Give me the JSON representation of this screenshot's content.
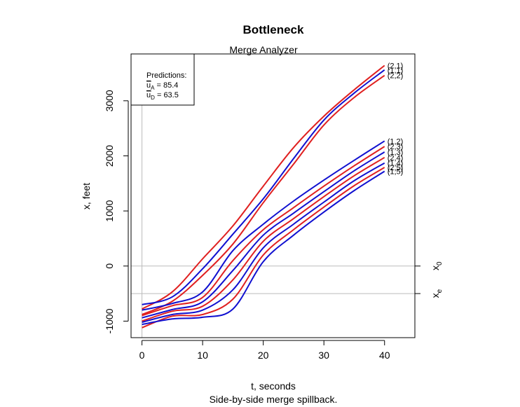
{
  "chart_data": {
    "type": "line",
    "title": "Bottleneck",
    "subtitle": "Merge Analyzer",
    "xlabel": "t, seconds",
    "ylabel": "x, feet",
    "caption": "Side-by-side merge spillback.",
    "xlim": [
      -1.8,
      45
    ],
    "ylim": [
      -1300,
      3850
    ],
    "xticks": [
      0,
      10,
      20,
      30,
      40
    ],
    "yticks": [
      -1000,
      0,
      1000,
      2000,
      3000
    ],
    "hlines": [
      {
        "y": 0,
        "label": "x",
        "sub": "0"
      },
      {
        "y": -500,
        "label": "x",
        "sub": "e"
      }
    ],
    "vline": 0,
    "legend": {
      "header": "Predictions:",
      "lines": [
        {
          "sym": "u",
          "sub": "A",
          "text": " = 85.4"
        },
        {
          "sym": "u",
          "sub": "D",
          "text": " = 63.5"
        }
      ]
    },
    "colors": {
      "red": "#e02020",
      "blue": "#1010d0",
      "ref": "#bbbbbb"
    },
    "series": [
      {
        "name": "(2,1)",
        "color": "red",
        "x": [
          0,
          5,
          10,
          15,
          20,
          25,
          30,
          35,
          40
        ],
        "y": [
          -780,
          -470,
          130,
          730,
          1450,
          2150,
          2720,
          3200,
          3640
        ]
      },
      {
        "name": "(1,1)",
        "color": "blue",
        "x": [
          0,
          5,
          10,
          15,
          20,
          25,
          30,
          35,
          40
        ],
        "y": [
          -700,
          -560,
          -50,
          580,
          1220,
          1950,
          2650,
          3140,
          3560
        ]
      },
      {
        "name": "(2,2)",
        "color": "red",
        "x": [
          0,
          5,
          10,
          15,
          20,
          25,
          30,
          35,
          40
        ],
        "y": [
          -880,
          -640,
          -170,
          400,
          1150,
          1850,
          2560,
          3060,
          3460
        ]
      },
      {
        "name": "(1,2)",
        "color": "blue",
        "x": [
          0,
          5,
          10,
          15,
          20,
          25,
          30,
          35,
          40
        ],
        "y": [
          -800,
          -680,
          -470,
          280,
          760,
          1180,
          1560,
          1920,
          2270
        ]
      },
      {
        "name": "(2,3)",
        "color": "red",
        "x": [
          0,
          5,
          10,
          15,
          20,
          25,
          30,
          35,
          40
        ],
        "y": [
          -900,
          -720,
          -570,
          100,
          660,
          1060,
          1450,
          1820,
          2170
        ]
      },
      {
        "name": "(1,3)",
        "color": "blue",
        "x": [
          0,
          5,
          10,
          15,
          20,
          25,
          30,
          35,
          40
        ],
        "y": [
          -940,
          -790,
          -650,
          -80,
          560,
          960,
          1350,
          1730,
          2070
        ]
      },
      {
        "name": "(2,4)",
        "color": "red",
        "x": [
          0,
          5,
          10,
          15,
          20,
          25,
          30,
          35,
          40
        ],
        "y": [
          -1000,
          -820,
          -730,
          -250,
          450,
          860,
          1260,
          1640,
          1970
        ]
      },
      {
        "name": "(1,4)",
        "color": "blue",
        "x": [
          0,
          5,
          10,
          15,
          20,
          25,
          30,
          35,
          40
        ],
        "y": [
          -1020,
          -880,
          -800,
          -430,
          330,
          760,
          1160,
          1550,
          1870
        ]
      },
      {
        "name": "(2,5)",
        "color": "red",
        "x": [
          0,
          5,
          10,
          15,
          20,
          25,
          30,
          35,
          40
        ],
        "y": [
          -1120,
          -910,
          -880,
          -600,
          200,
          660,
          1070,
          1460,
          1790
        ]
      },
      {
        "name": "(1,5)",
        "color": "blue",
        "x": [
          0,
          5,
          10,
          15,
          20,
          25,
          30,
          35,
          40
        ],
        "y": [
          -1060,
          -960,
          -930,
          -780,
          80,
          560,
          980,
          1370,
          1720
        ]
      }
    ]
  }
}
